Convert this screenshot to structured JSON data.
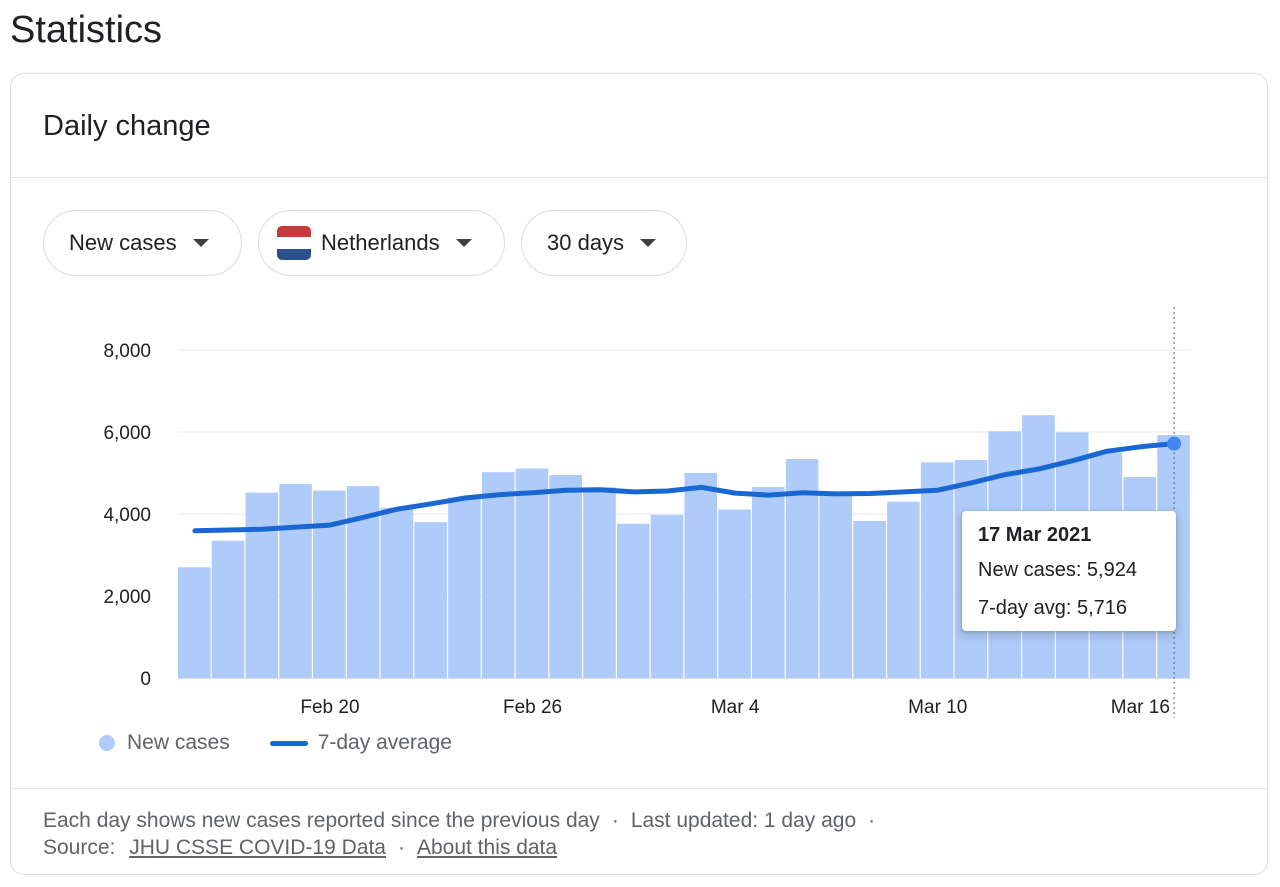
{
  "page_title": "Statistics",
  "card": {
    "title": "Daily change",
    "filters": [
      {
        "label": "New cases",
        "icon": "dropdown-caret-icon"
      },
      {
        "label": "Netherlands",
        "icon": "netherlands-flag-icon"
      },
      {
        "label": "30 days",
        "icon": "dropdown-caret-icon"
      }
    ]
  },
  "colors": {
    "bar": "#aecbfa",
    "line": "#1967d2",
    "flag_red": "#c53a3a",
    "flag_white": "#ffffff",
    "flag_blue": "#2b4f8f"
  },
  "chart_data": {
    "type": "bar",
    "categories": [
      "Feb 16",
      "Feb 17",
      "Feb 18",
      "Feb 19",
      "Feb 20",
      "Feb 21",
      "Feb 22",
      "Feb 23",
      "Feb 24",
      "Feb 25",
      "Feb 26",
      "Feb 27",
      "Feb 28",
      "Mar 1",
      "Mar 2",
      "Mar 3",
      "Mar 4",
      "Mar 5",
      "Mar 6",
      "Mar 7",
      "Mar 8",
      "Mar 9",
      "Mar 10",
      "Mar 11",
      "Mar 12",
      "Mar 13",
      "Mar 14",
      "Mar 15",
      "Mar 16",
      "Mar 17"
    ],
    "series": [
      {
        "name": "New cases",
        "values": [
          2700,
          3350,
          4520,
          4730,
          4570,
          4680,
          4150,
          3800,
          4400,
          5020,
          5110,
          4950,
          4650,
          3760,
          3980,
          5000,
          4110,
          4660,
          5340,
          4480,
          3830,
          4300,
          5260,
          5320,
          6020,
          6410,
          5990,
          5500,
          4900,
          5924
        ]
      },
      {
        "name": "7-day average",
        "values": [
          3590,
          3610,
          3630,
          3680,
          3730,
          3920,
          4120,
          4250,
          4390,
          4470,
          4520,
          4580,
          4590,
          4540,
          4560,
          4650,
          4510,
          4460,
          4520,
          4490,
          4500,
          4540,
          4580,
          4760,
          4960,
          5100,
          5300,
          5530,
          5640,
          5716
        ]
      }
    ],
    "x_tick_labels": [
      "Feb 20",
      "Feb 26",
      "Mar 4",
      "Mar 10",
      "Mar 16"
    ],
    "x_tick_index": [
      4,
      10,
      16,
      22,
      28
    ],
    "y_ticks": [
      0,
      2000,
      4000,
      6000,
      8000
    ],
    "y_tick_labels": [
      "0",
      "2,000",
      "4,000",
      "6,000",
      "8,000"
    ],
    "ylim": [
      0,
      8000
    ],
    "grid": true,
    "legend_position": "bottom-left",
    "tooltip": {
      "date": "17 Mar 2021",
      "new_cases": "New cases: 5,924",
      "avg": "7-day avg: 5,716",
      "index": 29
    }
  },
  "footer": {
    "note": "Each day shows new cases reported since the previous day",
    "separator": "·",
    "updated": "Last updated: 1 day ago",
    "source_label": "Source:",
    "source_link": "JHU CSSE COVID-19 Data",
    "about_link": "About this data"
  }
}
